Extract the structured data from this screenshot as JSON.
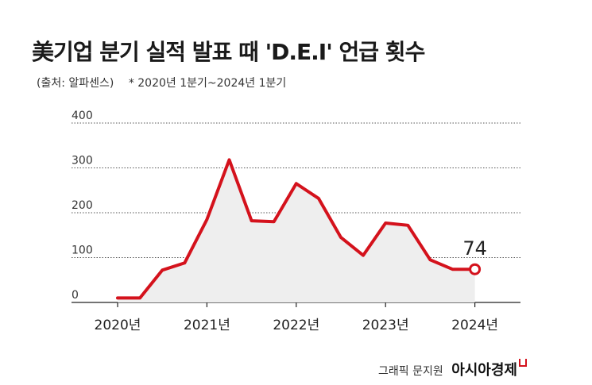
{
  "header": {
    "title": "美기업 분기 실적 발표 때 'D.E.I' 언급 횟수",
    "source": "(출처: 알파센스)",
    "note": "* 2020년 1분기~2024년 1분기"
  },
  "footer": {
    "credit": "그래픽 문지원",
    "brand": "아시아경제"
  },
  "colors": {
    "line": "#d4121c",
    "area": "#eeeeee",
    "grid": "#555555",
    "text": "#1a1a1a"
  },
  "chart_data": {
    "type": "area",
    "title": "美기업 분기 실적 발표 때 'D.E.I' 언급 횟수",
    "xlabel": "",
    "ylabel": "",
    "x": [
      "2020년 1분기",
      "2020년 2분기",
      "2020년 3분기",
      "2020년 4분기",
      "2021년 1분기",
      "2021년 2분기",
      "2021년 3분기",
      "2021년 4분기",
      "2022년 1분기",
      "2022년 2분기",
      "2022년 3분기",
      "2022년 4분기",
      "2023년 1분기",
      "2023년 2분기",
      "2023년 3분기",
      "2023년 4분기",
      "2024년 1분기"
    ],
    "values": [
      10,
      10,
      72,
      88,
      185,
      318,
      182,
      180,
      265,
      232,
      145,
      105,
      177,
      172,
      95,
      74,
      74
    ],
    "yticks": [
      "0",
      "100",
      "200",
      "300",
      "400"
    ],
    "ylim": [
      0,
      400
    ],
    "xticks": [
      "2020년",
      "2021년",
      "2022년",
      "2023년",
      "2024년"
    ],
    "last_label": "74",
    "grid": "horizontal dotted"
  }
}
